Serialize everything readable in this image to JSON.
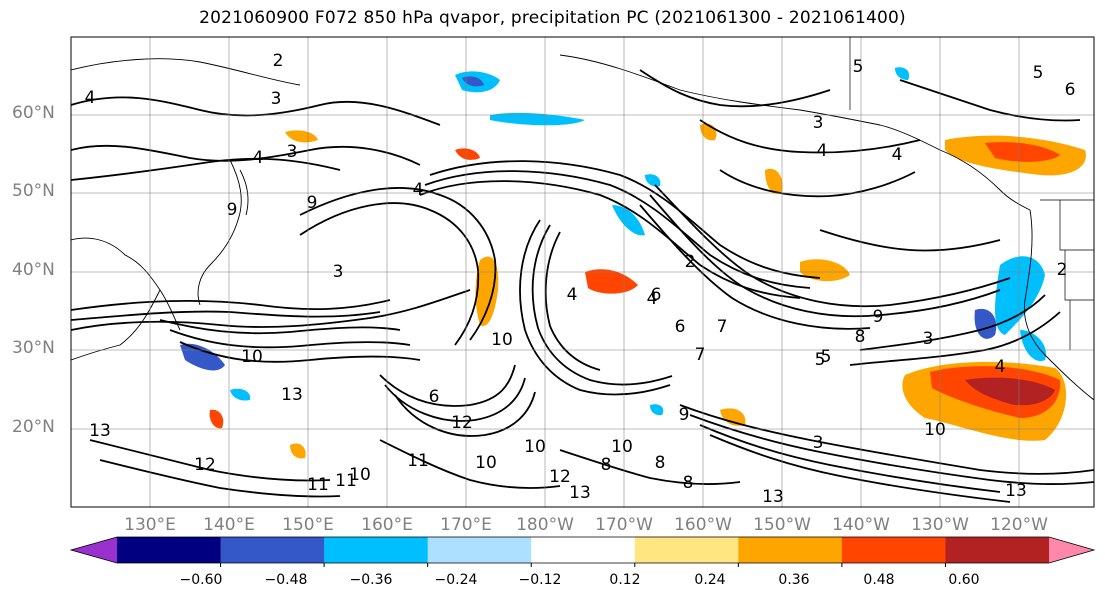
{
  "title": "2021060900 F072 850 hPa qvapor, precipitation PC (2021061300 - 2021061400)",
  "lat_labels": [
    "60°N",
    "50°N",
    "40°N",
    "30°N",
    "20°N"
  ],
  "lon_labels": [
    "130°E",
    "140°E",
    "150°E",
    "160°E",
    "170°E",
    "180°W",
    "170°W",
    "160°W",
    "150°W",
    "140°W",
    "130°W",
    "120°W"
  ],
  "colorbar": {
    "colors": [
      "#9932cc",
      "#000080",
      "#3558c8",
      "#00bfff",
      "#addfff",
      "#ffffff",
      "#ffe680",
      "#ffa500",
      "#ff4500",
      "#b22222",
      "#ff88aa"
    ],
    "tick_labels": [
      "−0.60",
      "−0.48",
      "−0.36",
      "−0.24",
      "−0.12",
      "0.12",
      "0.24",
      "0.36",
      "0.48",
      "0.60"
    ]
  },
  "contour_labels": [
    "4",
    "2",
    "3",
    "4",
    "5",
    "5",
    "6",
    "4",
    "3",
    "9",
    "4",
    "3",
    "4",
    "2",
    "3",
    "4",
    "9",
    "8",
    "4",
    "6",
    "2",
    "10",
    "13",
    "10",
    "6",
    "12",
    "10",
    "12",
    "11",
    "10",
    "9",
    "13",
    "13",
    "11",
    "10",
    "8",
    "8",
    "7",
    "3",
    "5",
    "6",
    "8",
    "9",
    "7",
    "5",
    "3",
    "4",
    "13",
    "13",
    "10",
    "11",
    "12",
    "10"
  ]
}
